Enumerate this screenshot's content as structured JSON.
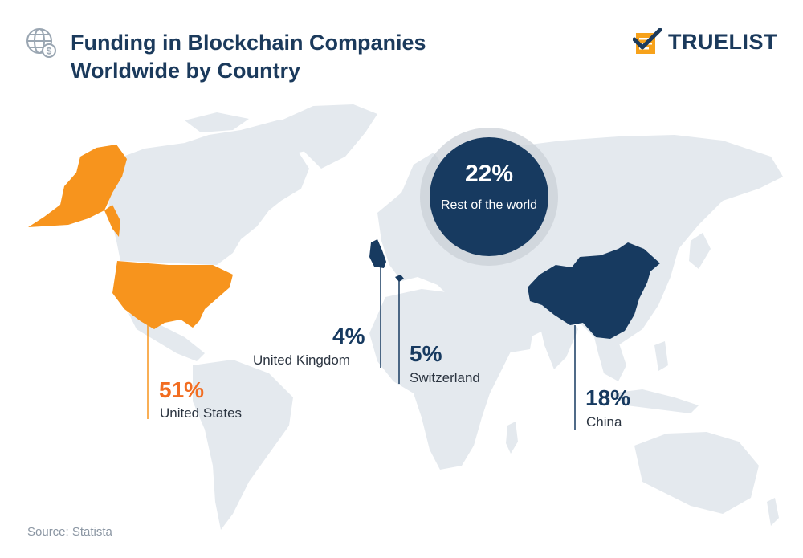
{
  "header": {
    "title": "Funding in Blockchain Companies Worldwide by Country",
    "icon": "globe-dollar-icon",
    "brand": "TRUELIST",
    "brand_icon": "checklist-logo-icon"
  },
  "colors": {
    "navy": "#173a60",
    "orange": "#f7941d",
    "orange_text": "#f26d21",
    "land": "#e4e9ee",
    "text": "#2b3440"
  },
  "regions": [
    {
      "id": "us",
      "value": "51%",
      "label": "United States",
      "color": "orange"
    },
    {
      "id": "uk",
      "value": "4%",
      "label": "United Kingdom",
      "color": "navy"
    },
    {
      "id": "ch",
      "value": "5%",
      "label": "Switzerland",
      "color": "navy"
    },
    {
      "id": "cn",
      "value": "18%",
      "label": "China",
      "color": "navy"
    },
    {
      "id": "row",
      "value": "22%",
      "label": "Rest of the world",
      "color": "navy"
    }
  ],
  "footer": {
    "source": "Source: Statista"
  }
}
